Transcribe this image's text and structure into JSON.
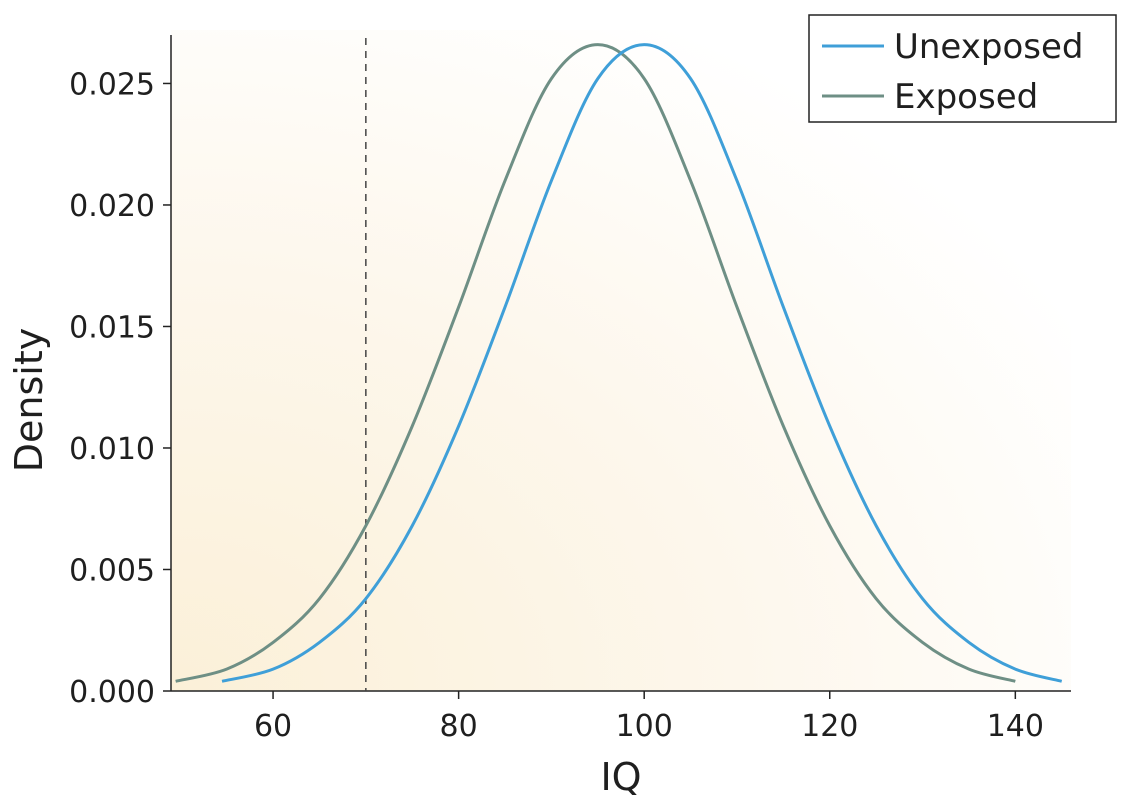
{
  "chart_data": {
    "type": "line",
    "xlabel": "IQ",
    "ylabel": "Density",
    "xlim": [
      49,
      146
    ],
    "ylim": [
      0,
      0.0272
    ],
    "x_ticks": [
      60,
      80,
      100,
      120,
      140
    ],
    "y_ticks": [
      0.0,
      0.005,
      0.01,
      0.015,
      0.02,
      0.025
    ],
    "x_tick_labels": [
      "60",
      "80",
      "100",
      "120",
      "140"
    ],
    "y_tick_labels": [
      "0.000",
      "0.005",
      "0.010",
      "0.015",
      "0.020",
      "0.025"
    ],
    "reference_line": {
      "x": 70,
      "style": "dashed"
    },
    "legend": {
      "position": "top-right"
    },
    "background": "warm gradient, bottom-left cream to white",
    "series": [
      {
        "name": "Unexposed",
        "color": "#3f9fd8",
        "x": [
          54.5,
          60,
          65,
          70,
          75,
          80,
          85,
          90,
          95,
          100,
          105,
          110,
          115,
          120,
          125,
          130,
          135,
          140,
          145
        ],
        "y": [
          0.0004,
          0.0009,
          0.002,
          0.0038,
          0.0068,
          0.0109,
          0.0158,
          0.021,
          0.0252,
          0.0266,
          0.0252,
          0.021,
          0.0158,
          0.0109,
          0.0068,
          0.0038,
          0.002,
          0.0009,
          0.0004
        ]
      },
      {
        "name": "Exposed",
        "color": "#6e8f85",
        "x": [
          49.5,
          55,
          60,
          65,
          70,
          75,
          80,
          85,
          90,
          95,
          100,
          105,
          110,
          115,
          120,
          125,
          130,
          135,
          140
        ],
        "y": [
          0.0004,
          0.0009,
          0.002,
          0.0038,
          0.0068,
          0.0109,
          0.0158,
          0.021,
          0.0252,
          0.0266,
          0.0252,
          0.021,
          0.0158,
          0.0109,
          0.0068,
          0.0038,
          0.002,
          0.0009,
          0.0004
        ]
      }
    ]
  }
}
